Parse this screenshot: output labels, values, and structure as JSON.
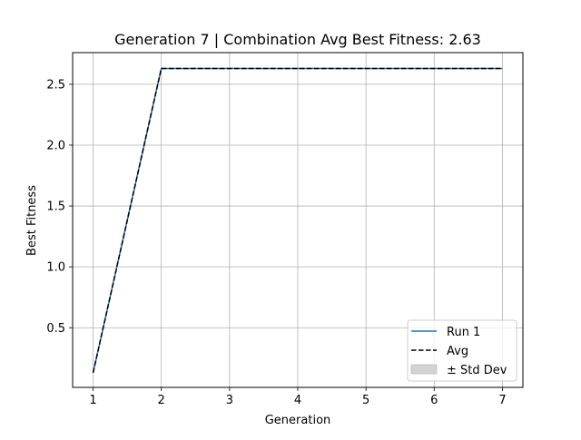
{
  "chart_data": {
    "type": "line",
    "title": "Generation 7 | Combination Avg Best Fitness: 2.63",
    "xlabel": "Generation",
    "ylabel": "Best Fitness",
    "xlim": [
      0.7,
      7.3
    ],
    "ylim": [
      0.01,
      2.76
    ],
    "xticks": [
      1,
      2,
      3,
      4,
      5,
      6,
      7
    ],
    "yticks": [
      0.5,
      1.0,
      1.5,
      2.0,
      2.5
    ],
    "ytick_labels": [
      "0.5",
      "1.0",
      "1.5",
      "2.0",
      "2.5"
    ],
    "grid": true,
    "legend_position": "lower-right",
    "x": [
      1,
      2,
      3,
      4,
      5,
      6,
      7
    ],
    "series": [
      {
        "name": "Run 1",
        "values": [
          0.13,
          2.63,
          2.63,
          2.63,
          2.63,
          2.63,
          2.63
        ],
        "color": "#1f77b4",
        "style": "solid"
      },
      {
        "name": "Avg",
        "values": [
          0.13,
          2.63,
          2.63,
          2.63,
          2.63,
          2.63,
          2.63
        ],
        "color": "#000000",
        "style": "dashed"
      }
    ],
    "std_band": {
      "name": "± Std Dev",
      "color": "#d3d3d3",
      "lower": [
        0.13,
        2.63,
        2.63,
        2.63,
        2.63,
        2.63,
        2.63
      ],
      "upper": [
        0.13,
        2.63,
        2.63,
        2.63,
        2.63,
        2.63,
        2.63
      ]
    }
  }
}
